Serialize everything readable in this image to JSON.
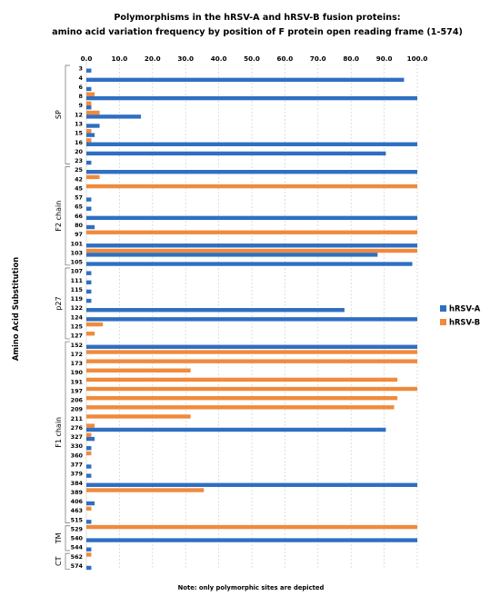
{
  "chart_data": {
    "type": "bar",
    "orientation": "horizontal",
    "title_lines": [
      "Polymorphisms in the hRSV-A and hRSV-B fusion proteins:",
      "amino acid variation frequency by position of F protein open reading frame (1-574)"
    ],
    "ylabel": "Amino Acid Substitution",
    "xlim": [
      0,
      100
    ],
    "x_ticks": [
      "0.0",
      "10.0",
      "20.0",
      "30.0",
      "40.0",
      "50.0",
      "60.0",
      "70.0",
      "80.0",
      "90.0",
      "100.0"
    ],
    "legend_position": "right",
    "note": "Note: only polymorphic sites are depicted",
    "categories": [
      "3",
      "4",
      "6",
      "8",
      "9",
      "12",
      "13",
      "15",
      "16",
      "20",
      "23",
      "25",
      "42",
      "45",
      "57",
      "65",
      "66",
      "80",
      "97",
      "101",
      "103",
      "105",
      "107",
      "111",
      "115",
      "119",
      "122",
      "124",
      "125",
      "127",
      "152",
      "172",
      "173",
      "190",
      "191",
      "197",
      "206",
      "209",
      "211",
      "276",
      "327",
      "330",
      "360",
      "377",
      "379",
      "384",
      "389",
      "406",
      "463",
      "515",
      "529",
      "540",
      "544",
      "562",
      "574"
    ],
    "series": [
      {
        "name": "hRSV-A",
        "color": "#2f6fc2",
        "values": [
          1.5,
          96,
          1.5,
          100,
          1.5,
          16.5,
          4,
          2.5,
          100,
          90.5,
          1.5,
          100,
          0,
          0,
          1.5,
          1.5,
          100,
          2.5,
          0,
          100,
          88,
          98.5,
          1.5,
          1.5,
          1.5,
          1.5,
          78,
          100,
          0,
          0,
          100,
          0,
          0,
          0,
          0,
          0,
          0,
          0,
          0,
          90.5,
          2.5,
          1.5,
          0,
          1.5,
          1.5,
          100,
          0,
          2.5,
          0,
          1.5,
          0,
          100,
          1.5,
          0,
          1.5
        ]
      },
      {
        "name": "hRSV-B",
        "color": "#f08a3c",
        "values": [
          0,
          0,
          0,
          2.5,
          1.5,
          4,
          0,
          1.5,
          1.5,
          0,
          0,
          0,
          4,
          100,
          0,
          0,
          0,
          0,
          100,
          0,
          100,
          0,
          0,
          0,
          0,
          0,
          0,
          0,
          5,
          2.5,
          0,
          100,
          100,
          31.5,
          94,
          100,
          94,
          93,
          31.5,
          2.5,
          1.5,
          0,
          1.5,
          0,
          0,
          0,
          35.5,
          0,
          1.5,
          0,
          100,
          0,
          0,
          1.5,
          0
        ]
      }
    ],
    "segments": [
      {
        "label": "SP",
        "from": "3",
        "to": "23"
      },
      {
        "label": "F2 chain",
        "from": "25",
        "to": "105"
      },
      {
        "label": "p27",
        "from": "107",
        "to": "127"
      },
      {
        "label": "F1 chain",
        "from": "152",
        "to": "515"
      },
      {
        "label": "TM",
        "from": "529",
        "to": "544"
      },
      {
        "label": "CT",
        "from": "562",
        "to": "574"
      }
    ]
  }
}
